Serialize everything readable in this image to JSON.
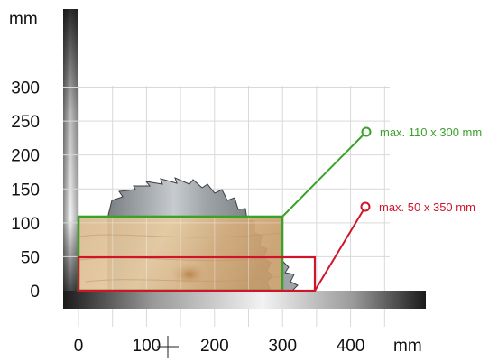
{
  "diagram": {
    "unit_y": "mm",
    "unit_x": "mm",
    "y_ticks": [
      "300",
      "250",
      "200",
      "150",
      "100",
      "50",
      "0"
    ],
    "x_ticks": [
      "0",
      "100",
      "200",
      "300",
      "400"
    ],
    "callout_green": {
      "text": "max. 110 x 300 mm",
      "color": "#3aa12b"
    },
    "callout_red": {
      "text": "max. 50 x 350 mm",
      "color": "#d0152b"
    }
  }
}
